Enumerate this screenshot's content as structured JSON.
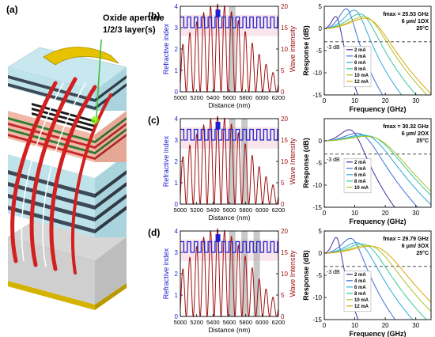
{
  "panel_labels": [
    "(a)",
    "(b)",
    "(c)",
    "(d)"
  ],
  "annotation": {
    "line1": "Oxide aperture",
    "line2": "1/2/3 layer(s)"
  },
  "colors": {
    "refractive": "#1f1fd0",
    "intensity": "#a01010",
    "oxide_band": "#9c9c9c",
    "cutoff": "#333333"
  },
  "chart_data": [
    {
      "panel": "(b)",
      "type": "line",
      "xlabel": "Distance (nm)",
      "ylabel_left": "Refractive index",
      "ylabel_right": "Wave intensity",
      "xlim": [
        5000,
        6200
      ],
      "ylim_left": [
        0,
        4
      ],
      "ylim_right": [
        0,
        20
      ],
      "xticks": [
        5000,
        5200,
        5400,
        5600,
        5800,
        6000,
        6200
      ],
      "yticks_left": [
        0,
        1,
        2,
        3,
        4
      ],
      "yticks_right": [
        0,
        5,
        10,
        15,
        20
      ],
      "oxide_layers": 1,
      "oxide_positions_nm": [
        5635
      ],
      "refractive_levels": [
        3.0,
        3.5
      ],
      "peak_intensity": 20.5,
      "intensity_peaks_nm": [
        5030,
        5115,
        5200,
        5285,
        5370,
        5455,
        5540,
        5625,
        5710,
        5795,
        5880,
        5965,
        6050,
        6135
      ]
    },
    {
      "panel": "(b)",
      "type": "line",
      "xlabel": "Frequency (GHz)",
      "ylabel": "Response (dB)",
      "xlim": [
        0,
        35
      ],
      "ylim": [
        -15,
        5
      ],
      "xticks": [
        0,
        10,
        20,
        30
      ],
      "yticks": [
        -15,
        -10,
        -5,
        0,
        5
      ],
      "cutoff_db": -3,
      "cutoff_label": "-3 dB",
      "annotation": [
        "fmax = 25.53 GHz",
        "6 μm/ 1OX",
        "25°C"
      ],
      "series": [
        {
          "name": "2 mA",
          "color": "#4b2a9c",
          "peak_ghz": 4.5,
          "peak_db": 2.0
        },
        {
          "name": "4 mA",
          "color": "#3e6fd8",
          "peak_ghz": 8.0,
          "peak_db": 4.2
        },
        {
          "name": "6 mA",
          "color": "#2ea8d8",
          "peak_ghz": 11.0,
          "peak_db": 4.0
        },
        {
          "name": "8 mA",
          "color": "#39c79a",
          "peak_ghz": 13.5,
          "peak_db": 3.2
        },
        {
          "name": "10 mA",
          "color": "#a8c22a",
          "peak_ghz": 15.5,
          "peak_db": 2.6
        },
        {
          "name": "12 mA",
          "color": "#e0a500",
          "peak_ghz": 16.5,
          "peak_db": 2.2
        }
      ]
    },
    {
      "panel": "(c)",
      "type": "line",
      "xlabel": "Distance (nm)",
      "ylabel_left": "Refractive index",
      "ylabel_right": "Wave Intensity",
      "xlim": [
        5000,
        6200
      ],
      "ylim_left": [
        0,
        4
      ],
      "ylim_right": [
        0,
        20
      ],
      "xticks": [
        5000,
        5200,
        5400,
        5600,
        5800,
        6000,
        6200
      ],
      "yticks_left": [
        0,
        1,
        2,
        3,
        4
      ],
      "yticks_right": [
        0,
        5,
        10,
        15,
        20
      ],
      "oxide_layers": 2,
      "oxide_positions_nm": [
        5635,
        5785
      ],
      "refractive_levels": [
        3.0,
        3.5
      ],
      "peak_intensity": 20.5,
      "intensity_peaks_nm": [
        5030,
        5115,
        5200,
        5285,
        5370,
        5455,
        5540,
        5625,
        5710,
        5795,
        5880,
        5965,
        6050,
        6135
      ]
    },
    {
      "panel": "(c)",
      "type": "line",
      "xlabel": "Frequency (GHz)",
      "ylabel": "Response (dB)",
      "xlim": [
        0,
        35
      ],
      "ylim": [
        -15,
        5
      ],
      "xticks": [
        0,
        10,
        20,
        30
      ],
      "yticks": [
        -15,
        -10,
        -5,
        0
      ],
      "cutoff_db": -3,
      "cutoff_label": "-3 dB",
      "annotation": [
        "fmax = 30.32 GHz",
        "6 μm/ 2OX",
        "25°C"
      ],
      "series": [
        {
          "name": "2 mA",
          "color": "#4b2a9c",
          "peak_ghz": 10.0,
          "peak_db": 2.0
        },
        {
          "name": "4 mA",
          "color": "#3e6fd8",
          "peak_ghz": 14.0,
          "peak_db": 1.2
        },
        {
          "name": "6 mA",
          "color": "#2ea8d8",
          "peak_ghz": 17.0,
          "peak_db": 0.9
        },
        {
          "name": "8 mA",
          "color": "#39c79a",
          "peak_ghz": 19.0,
          "peak_db": 0.8
        },
        {
          "name": "10 mA",
          "color": "#a8c22a",
          "peak_ghz": 20.0,
          "peak_db": 0.6
        }
      ]
    },
    {
      "panel": "(d)",
      "type": "line",
      "xlabel": "Distance (nm)",
      "ylabel_left": "Refractive index",
      "ylabel_right": "Wave Intensity",
      "xlim": [
        5000,
        6200
      ],
      "ylim_left": [
        0,
        4
      ],
      "ylim_right": [
        0,
        20
      ],
      "xticks": [
        5000,
        5200,
        5400,
        5600,
        5800,
        6000,
        6200
      ],
      "yticks_left": [
        0,
        1,
        2,
        3,
        4
      ],
      "yticks_right": [
        0,
        5,
        10,
        15,
        20
      ],
      "oxide_layers": 3,
      "oxide_positions_nm": [
        5635,
        5785,
        5935
      ],
      "refractive_levels": [
        3.0,
        3.5
      ],
      "peak_intensity": 20.5,
      "intensity_peaks_nm": [
        5030,
        5115,
        5200,
        5285,
        5370,
        5455,
        5540,
        5625,
        5710,
        5795,
        5880,
        5965,
        6050,
        6135
      ]
    },
    {
      "panel": "(d)",
      "type": "line",
      "xlabel": "Frequency (GHz)",
      "ylabel": "Response (dB)",
      "xlim": [
        0,
        35
      ],
      "ylim": [
        -15,
        5
      ],
      "xticks": [
        0,
        10,
        20,
        30
      ],
      "yticks": [
        -15,
        -10,
        -5,
        0,
        5
      ],
      "cutoff_db": -3,
      "cutoff_label": "-3 dB",
      "annotation": [
        "fmax = 29.79 GHz",
        "6 μm/ 3OX",
        "25°C"
      ],
      "series": [
        {
          "name": "2 mA",
          "color": "#4b2a9c",
          "peak_ghz": 4.5,
          "peak_db": 3.0
        },
        {
          "name": "4 mA",
          "color": "#3e6fd8",
          "peak_ghz": 10.0,
          "peak_db": 3.0
        },
        {
          "name": "6 mA",
          "color": "#2ea8d8",
          "peak_ghz": 13.0,
          "peak_db": 2.0
        },
        {
          "name": "8 mA",
          "color": "#39c79a",
          "peak_ghz": 15.5,
          "peak_db": 1.8
        },
        {
          "name": "10 mA",
          "color": "#a8c22a",
          "peak_ghz": 18.0,
          "peak_db": 1.6
        },
        {
          "name": "12 mA",
          "color": "#e0a500",
          "peak_ghz": 20.0,
          "peak_db": 1.5
        }
      ]
    }
  ]
}
